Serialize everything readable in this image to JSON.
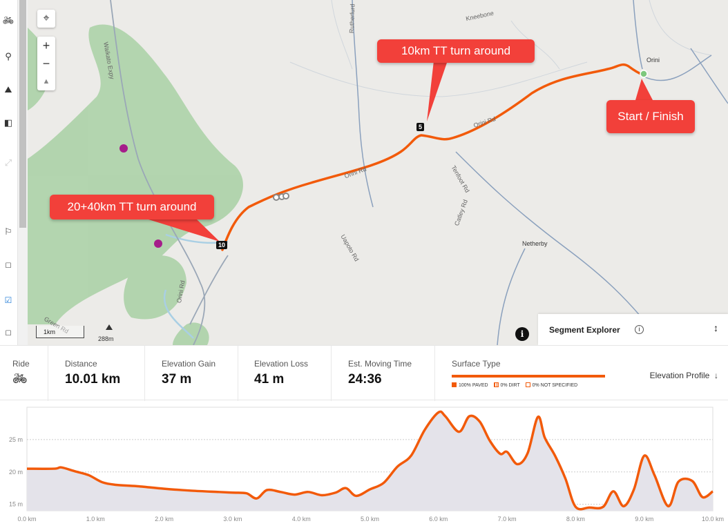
{
  "map": {
    "place_labels": {
      "orini": "Orini",
      "netherby": "Netherby",
      "waikato_expy": "Waikato Expy",
      "orini_rd_1": "Orini Rd",
      "orini_rd_2": "Orini Rd",
      "orini_rd_3": "Orini Rd",
      "tenfoot_rd": "Tenfoot Rd",
      "catley_rd": "Catley Rd",
      "uapoto_rd": "Uapoto Rd",
      "rutherfurd": "Rutherfurd",
      "kneebone": "Kneebone",
      "green_rd": "Green Rd",
      "peak": "288m"
    },
    "callouts": {
      "tt10": "10km TT turn around",
      "start_finish": "Start / Finish",
      "tt2040": "20+40km TT turn around"
    },
    "km_markers": {
      "m5": "5",
      "m10": "10"
    },
    "scale_label": "1km",
    "colors": {
      "route": "#f25a0a",
      "callout": "#f2403a",
      "forest": "#a9d1a4",
      "water": "#a9cfe4"
    }
  },
  "controls": {
    "locate_icon": "crosshair-icon",
    "zoom_in": "+",
    "zoom_out": "−",
    "compass": "▲"
  },
  "segment_explorer": {
    "title": "Segment Explorer",
    "info": "i",
    "expand": "↕"
  },
  "info_button": "i",
  "stats": {
    "ride_label": "Ride",
    "distance_label": "Distance",
    "distance_value": "10.01 km",
    "gain_label": "Elevation Gain",
    "gain_value": "37 m",
    "loss_label": "Elevation Loss",
    "loss_value": "41 m",
    "time_label": "Est. Moving Time",
    "time_value": "24:36",
    "surface_label": "Surface Type",
    "surface_legend": {
      "paved": "100% PAVED",
      "dirt": "0% DIRT",
      "not_specified": "0% NOT SPECIFIED"
    },
    "elevation_profile_label": "Elevation Profile"
  },
  "chart_data": {
    "type": "area",
    "x_ticks": [
      "0.0 km",
      "1.0 km",
      "2.0 km",
      "3.0 km",
      "4.0 km",
      "5.0 km",
      "6.0 km",
      "7.0 km",
      "8.0 km",
      "9.0 km",
      "10.0 km"
    ],
    "y_ticks": [
      "15 m",
      "20 m",
      "25 m"
    ],
    "xlim": [
      0,
      10
    ],
    "ylim": [
      14,
      30
    ],
    "x": [
      0,
      0.4,
      0.5,
      0.7,
      0.9,
      1.1,
      1.3,
      1.6,
      2.0,
      2.4,
      2.8,
      3.0,
      3.2,
      3.35,
      3.5,
      3.7,
      3.9,
      4.1,
      4.3,
      4.5,
      4.65,
      4.8,
      5.0,
      5.2,
      5.4,
      5.6,
      5.8,
      6.0,
      6.1,
      6.3,
      6.45,
      6.6,
      6.75,
      6.9,
      7.0,
      7.15,
      7.3,
      7.45,
      7.55,
      7.7,
      7.85,
      8.0,
      8.2,
      8.4,
      8.55,
      8.7,
      8.85,
      9.0,
      9.15,
      9.35,
      9.5,
      9.7,
      9.85,
      10.0
    ],
    "y": [
      20.5,
      20.5,
      20.7,
      20.1,
      19.5,
      18.4,
      18.0,
      17.8,
      17.4,
      17.1,
      16.9,
      16.8,
      16.7,
      15.9,
      17.2,
      16.9,
      16.5,
      16.9,
      16.4,
      16.8,
      17.5,
      16.3,
      17.3,
      18.3,
      20.8,
      22.5,
      26.5,
      29.2,
      28.6,
      26.2,
      28.6,
      27.8,
      24.8,
      22.8,
      23.1,
      21.2,
      22.9,
      28.5,
      25.3,
      22.5,
      19.0,
      14.6,
      14.5,
      14.6,
      17.0,
      14.7,
      17.3,
      22.5,
      19.5,
      14.7,
      18.5,
      18.6,
      16.1,
      17.0
    ]
  }
}
